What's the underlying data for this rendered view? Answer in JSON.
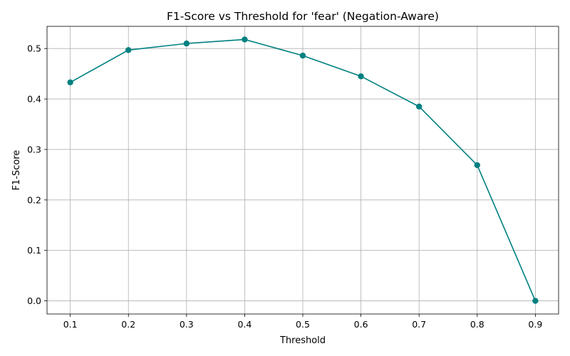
{
  "chart_data": {
    "type": "line",
    "title": "F1-Score vs Threshold for 'fear' (Negation-Aware)",
    "xlabel": "Threshold",
    "ylabel": "F1-Score",
    "x": [
      0.1,
      0.2,
      0.3,
      0.4,
      0.5,
      0.6,
      0.7,
      0.8,
      0.9
    ],
    "series": [
      {
        "values": [
          0.433,
          0.497,
          0.51,
          0.518,
          0.486,
          0.445,
          0.385,
          0.269,
          0.0
        ]
      }
    ],
    "xticks": [
      "0.1",
      "0.2",
      "0.3",
      "0.4",
      "0.5",
      "0.6",
      "0.7",
      "0.8",
      "0.9"
    ],
    "yticks": [
      "0.0",
      "0.1",
      "0.2",
      "0.3",
      "0.4",
      "0.5"
    ],
    "xlim": [
      0.06,
      0.94
    ],
    "ylim": [
      -0.026,
      0.544
    ],
    "grid": true,
    "marker": "circle",
    "color": "#008080",
    "grid_color": "#b0b0b0"
  }
}
